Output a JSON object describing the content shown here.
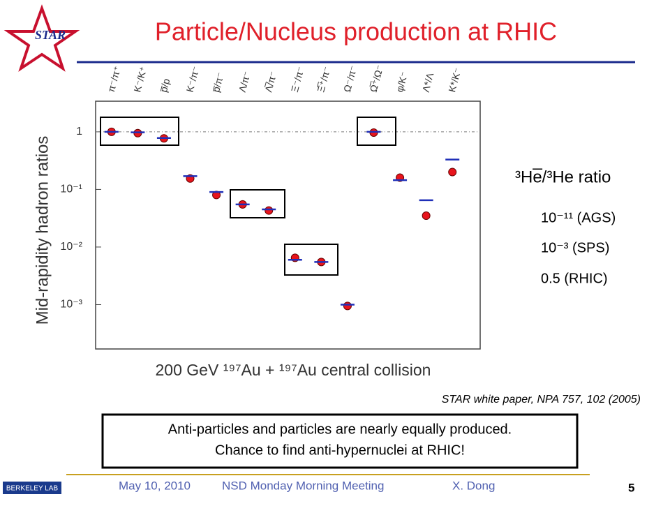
{
  "slide": {
    "title": "Particle/Nucleus production at RHIC",
    "logo_star": "STAR",
    "logo_lab": "BERKELEY LAB",
    "ratio_title": "³He̅/³He ratio",
    "ratio_items": [
      "10⁻¹¹ (AGS)",
      "10⁻³ (SPS)",
      "0.5 (RHIC)"
    ],
    "citation": "STAR white paper, NPA 757, 102 (2005)",
    "box_lines": [
      "Anti-particles and particles are nearly equally produced.",
      "Chance to find anti-hypernuclei at RHIC!"
    ],
    "footer": {
      "date": "May 10, 2010",
      "meeting": "NSD Monday Morning Meeting",
      "author": "X. Dong",
      "page": "5"
    }
  },
  "chart_data": {
    "type": "scatter",
    "x_label": "200 GeV ¹⁹⁷Au + ¹⁹⁷Au central collision",
    "y_label": "Mid-rapidity hadron ratios",
    "categories": [
      "π⁻/π⁺",
      "K⁻/K⁺",
      "p̅/p",
      "K⁻/π⁻",
      "p̅/π⁻",
      "Λ/π⁻",
      "Λ̅/π⁻",
      "Ξ⁻/π⁻",
      "Ξ̅⁺/π⁻",
      "Ω⁻/π⁻",
      "Ω̅⁺/Ω⁻",
      "φ/K⁻",
      "Λ*/Λ",
      "K*/K⁻"
    ],
    "log_y": true,
    "ylim": [
      0.00017,
      3.4
    ],
    "yticks": [
      1,
      {
        "value": 0.1,
        "label": "10⁻¹"
      },
      {
        "value": 0.01,
        "label": "10⁻²"
      },
      {
        "value": 0.001,
        "label": "10⁻³"
      }
    ],
    "series": [
      {
        "color": "#e8141c",
        "marker": "circle",
        "values": [
          1.0,
          0.95,
          0.77,
          0.155,
          0.08,
          0.055,
          0.043,
          0.0065,
          0.0055,
          0.00095,
          0.97,
          0.16,
          0.035,
          0.2
        ]
      },
      {
        "color": "#1f2fb8",
        "marker": "dash",
        "values": [
          1.0,
          0.98,
          0.78,
          0.17,
          0.09,
          0.055,
          0.045,
          0.006,
          0.0055,
          0.001,
          1.0,
          0.145,
          0.065,
          0.33
        ]
      }
    ]
  }
}
